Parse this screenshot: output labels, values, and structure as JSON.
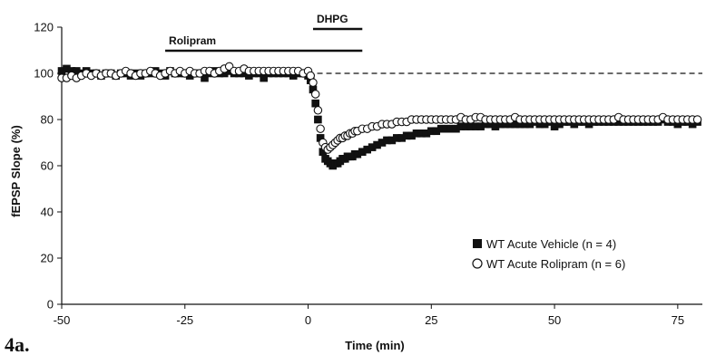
{
  "chart_data": {
    "type": "scatter",
    "panel_label": "4a.",
    "xlabel": "Time (min)",
    "ylabel": "fEPSP Slope (%)",
    "xlim": [
      -50,
      80
    ],
    "ylim": [
      0,
      120
    ],
    "xticks": [
      -50,
      -25,
      0,
      25,
      50,
      75
    ],
    "yticks": [
      0,
      20,
      40,
      60,
      80,
      100,
      120
    ],
    "reference_line": 100,
    "treatment_bars": [
      {
        "label": "Rolipram",
        "start": -29,
        "end": 11
      },
      {
        "label": "DHPG",
        "start": 1,
        "end": 11
      }
    ],
    "legend_position": "lower-right",
    "series": [
      {
        "name": "WT Acute Vehicle (n = 4)",
        "marker": "filled-square",
        "color": "#111111",
        "x": [
          -50,
          -49,
          -48,
          -47,
          -46,
          -45,
          -44,
          -43,
          -42,
          -41,
          -40,
          -39,
          -38,
          -37,
          -36,
          -35,
          -34,
          -33,
          -32,
          -31,
          -30,
          -29,
          -28,
          -27,
          -26,
          -25,
          -24,
          -23,
          -22,
          -21,
          -20,
          -19,
          -18,
          -17,
          -16,
          -15,
          -14,
          -13,
          -12,
          -11,
          -10,
          -9,
          -8,
          -7,
          -6,
          -5,
          -4,
          -3,
          -2,
          -1,
          0,
          0.5,
          1,
          1.5,
          2,
          2.5,
          3,
          3.5,
          4,
          4.5,
          5,
          5.5,
          6,
          6.5,
          7,
          7.5,
          8,
          8.5,
          9,
          9.5,
          10,
          11,
          12,
          13,
          14,
          15,
          16,
          17,
          18,
          19,
          20,
          21,
          22,
          23,
          24,
          25,
          26,
          27,
          28,
          29,
          30,
          31,
          32,
          33,
          34,
          35,
          36,
          37,
          38,
          39,
          40,
          41,
          42,
          43,
          44,
          45,
          46,
          47,
          48,
          49,
          50,
          51,
          52,
          53,
          54,
          55,
          56,
          57,
          58,
          59,
          60,
          61,
          62,
          63,
          64,
          65,
          66,
          67,
          68,
          69,
          70,
          71,
          72,
          73,
          74,
          75,
          76,
          77,
          78,
          79
        ],
        "y": [
          101,
          102,
          101,
          101,
          100,
          101,
          100,
          100,
          99,
          100,
          100,
          99,
          100,
          100,
          99,
          100,
          99,
          100,
          100,
          101,
          100,
          99,
          101,
          100,
          100,
          100,
          99,
          100,
          100,
          98,
          100,
          101,
          100,
          100,
          101,
          100,
          100,
          100,
          99,
          100,
          100,
          98,
          100,
          100,
          100,
          100,
          100,
          99,
          100,
          100,
          99,
          97,
          93,
          87,
          80,
          72,
          66,
          63,
          62,
          61,
          60,
          61,
          61,
          62,
          63,
          63,
          64,
          64,
          64,
          65,
          65,
          66,
          67,
          68,
          69,
          70,
          71,
          71,
          72,
          72,
          73,
          73,
          74,
          74,
          74,
          75,
          75,
          76,
          76,
          76,
          76,
          77,
          77,
          77,
          77,
          77,
          78,
          78,
          77,
          78,
          78,
          78,
          78,
          78,
          78,
          78,
          79,
          78,
          78,
          79,
          77,
          78,
          79,
          79,
          78,
          79,
          79,
          78,
          79,
          79,
          79,
          79,
          79,
          79,
          79,
          79,
          79,
          79,
          79,
          79,
          79,
          79,
          80,
          79,
          79,
          78,
          79,
          79,
          78,
          79
        ]
      },
      {
        "name": "WT Acute Rolipram (n = 6)",
        "marker": "open-circle",
        "color": "#111111",
        "x": [
          -50,
          -49,
          -48,
          -47,
          -46,
          -45,
          -44,
          -43,
          -42,
          -41,
          -40,
          -39,
          -38,
          -37,
          -36,
          -35,
          -34,
          -33,
          -32,
          -31,
          -30,
          -29,
          -28,
          -27,
          -26,
          -25,
          -24,
          -23,
          -22,
          -21,
          -20,
          -19,
          -18,
          -17,
          -16,
          -15,
          -14,
          -13,
          -12,
          -11,
          -10,
          -9,
          -8,
          -7,
          -6,
          -5,
          -4,
          -3,
          -2,
          -1,
          0,
          0.5,
          1,
          1.5,
          2,
          2.5,
          3,
          3.5,
          4,
          4.5,
          5,
          5.5,
          6,
          6.5,
          7,
          7.5,
          8,
          8.5,
          9,
          9.5,
          10,
          11,
          12,
          13,
          14,
          15,
          16,
          17,
          18,
          19,
          20,
          21,
          22,
          23,
          24,
          25,
          26,
          27,
          28,
          29,
          30,
          31,
          32,
          33,
          34,
          35,
          36,
          37,
          38,
          39,
          40,
          41,
          42,
          43,
          44,
          45,
          46,
          47,
          48,
          49,
          50,
          51,
          52,
          53,
          54,
          55,
          56,
          57,
          58,
          59,
          60,
          61,
          62,
          63,
          64,
          65,
          66,
          67,
          68,
          69,
          70,
          71,
          72,
          73,
          74,
          75,
          76,
          77,
          78,
          79
        ],
        "y": [
          98,
          98,
          99,
          98,
          99,
          100,
          99,
          100,
          99,
          100,
          100,
          99,
          100,
          101,
          100,
          99,
          100,
          100,
          101,
          100,
          99,
          100,
          101,
          100,
          101,
          100,
          101,
          100,
          100,
          101,
          101,
          100,
          101,
          102,
          103,
          101,
          101,
          102,
          101,
          101,
          101,
          101,
          101,
          101,
          101,
          101,
          101,
          101,
          101,
          100,
          101,
          99,
          96,
          91,
          84,
          76,
          70,
          68,
          67,
          68,
          69,
          70,
          71,
          72,
          72,
          73,
          73,
          74,
          74,
          75,
          75,
          76,
          76,
          77,
          77,
          78,
          78,
          78,
          79,
          79,
          79,
          80,
          80,
          80,
          80,
          80,
          80,
          80,
          80,
          80,
          80,
          81,
          80,
          80,
          81,
          81,
          80,
          80,
          80,
          80,
          80,
          80,
          81,
          80,
          80,
          80,
          80,
          80,
          80,
          80,
          80,
          80,
          80,
          80,
          80,
          80,
          80,
          80,
          80,
          80,
          80,
          80,
          80,
          81,
          80,
          80,
          80,
          80,
          80,
          80,
          80,
          80,
          81,
          80,
          80,
          80,
          80,
          80,
          80,
          80
        ]
      }
    ]
  }
}
